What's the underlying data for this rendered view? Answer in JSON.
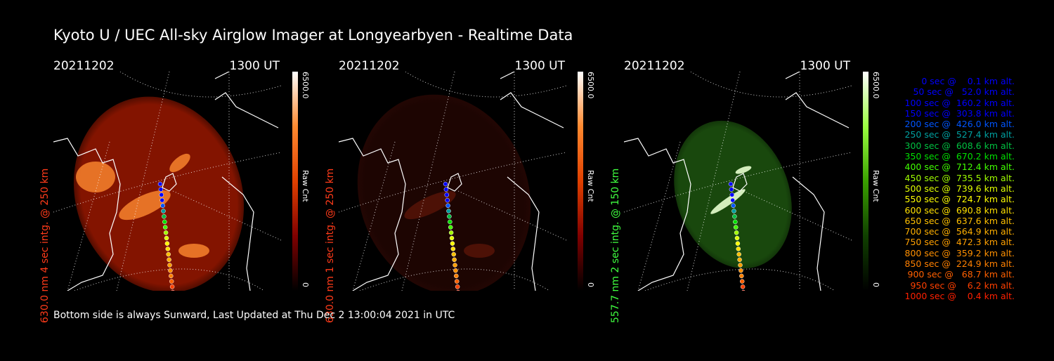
{
  "title": "Kyoto U / UEC All-sky Airglow Imager at Longyearbyen - Realtime Data",
  "footer": "Bottom side is always Sunward, Last Updated at Thu Dec  2 13:00:04 2021 in UTC",
  "panels": [
    {
      "date": "20211202",
      "time": "1300 UT",
      "ylabel": "630.0 nm 4 sec intg. @ 250 km",
      "label_color": "#ff3b1a",
      "cbar_max": "6500.0",
      "cbar_label": "Raw Cnt",
      "cbar_min": "0",
      "cbar_colors": [
        "#ffffff",
        "#ff8a30",
        "#e04000",
        "#800000",
        "#000000"
      ],
      "glow_color": "#8a1500",
      "glow_hi": "#ff8a30",
      "glow_rx": 118,
      "glow_ry": 142,
      "glow_cx": 150,
      "glow_cy": 175,
      "glow_level": 0.95
    },
    {
      "date": "20211202",
      "time": "1300 UT",
      "ylabel": "630.0 nm 1 sec intg. @ 250 km",
      "label_color": "#ff3b1a",
      "cbar_max": "6500.0",
      "cbar_label": "Raw Cnt",
      "cbar_min": "0",
      "cbar_colors": [
        "#ffffff",
        "#ff8a30",
        "#e04000",
        "#800000",
        "#000000"
      ],
      "glow_color": "#3a0a05",
      "glow_hi": "#5a1408",
      "glow_rx": 120,
      "glow_ry": 145,
      "glow_cx": 150,
      "glow_cy": 175,
      "glow_level": 0.5
    },
    {
      "date": "20211202",
      "time": "1300 UT",
      "ylabel": "557.7 nm 2 sec intg. @ 150 km",
      "label_color": "#40ff40",
      "cbar_max": "6500.0",
      "cbar_label": "Raw Cnt",
      "cbar_min": "0",
      "cbar_colors": [
        "#ffffff",
        "#9aff40",
        "#3aa000",
        "#104000",
        "#000000"
      ],
      "glow_color": "#1f5a10",
      "glow_hi": "#2f8a1a",
      "glow_rx": 80,
      "glow_ry": 108,
      "glow_cx": 155,
      "glow_cy": 175,
      "glow_level": 0.8
    }
  ],
  "trajectory_legend": [
    {
      "text": "   0 sec @    0.1 km alt.",
      "color": "#0000ff"
    },
    {
      "text": "  50 sec @   52.0 km alt.",
      "color": "#0000ff"
    },
    {
      "text": " 100 sec @  160.2 km alt.",
      "color": "#0000ff"
    },
    {
      "text": " 150 sec @  303.8 km alt.",
      "color": "#0000ff"
    },
    {
      "text": " 200 sec @  426.0 km alt.",
      "color": "#0055ff"
    },
    {
      "text": " 250 sec @  527.4 km alt.",
      "color": "#00a0a0"
    },
    {
      "text": " 300 sec @  608.6 km alt.",
      "color": "#00c040"
    },
    {
      "text": " 350 sec @  670.2 km alt.",
      "color": "#00e000"
    },
    {
      "text": " 400 sec @  712.4 km alt.",
      "color": "#40ff00"
    },
    {
      "text": " 450 sec @  735.5 km alt.",
      "color": "#a0ff00"
    },
    {
      "text": " 500 sec @  739.6 km alt.",
      "color": "#e0ff00"
    },
    {
      "text": " 550 sec @  724.7 km alt.",
      "color": "#ffff00"
    },
    {
      "text": " 600 sec @  690.8 km alt.",
      "color": "#ffe000"
    },
    {
      "text": " 650 sec @  637.6 km alt.",
      "color": "#ffc000"
    },
    {
      "text": " 700 sec @  564.9 km alt.",
      "color": "#ffb000"
    },
    {
      "text": " 750 sec @  472.3 km alt.",
      "color": "#ffa000"
    },
    {
      "text": " 800 sec @  359.2 km alt.",
      "color": "#ff9000"
    },
    {
      "text": " 850 sec @  224.9 km alt.",
      "color": "#ff8000"
    },
    {
      "text": " 900 sec @   68.7 km alt.",
      "color": "#ff6000"
    },
    {
      "text": " 950 sec @    6.2 km alt.",
      "color": "#ff4000"
    },
    {
      "text": "1000 sec @    0.4 km alt.",
      "color": "#ff2000"
    }
  ]
}
